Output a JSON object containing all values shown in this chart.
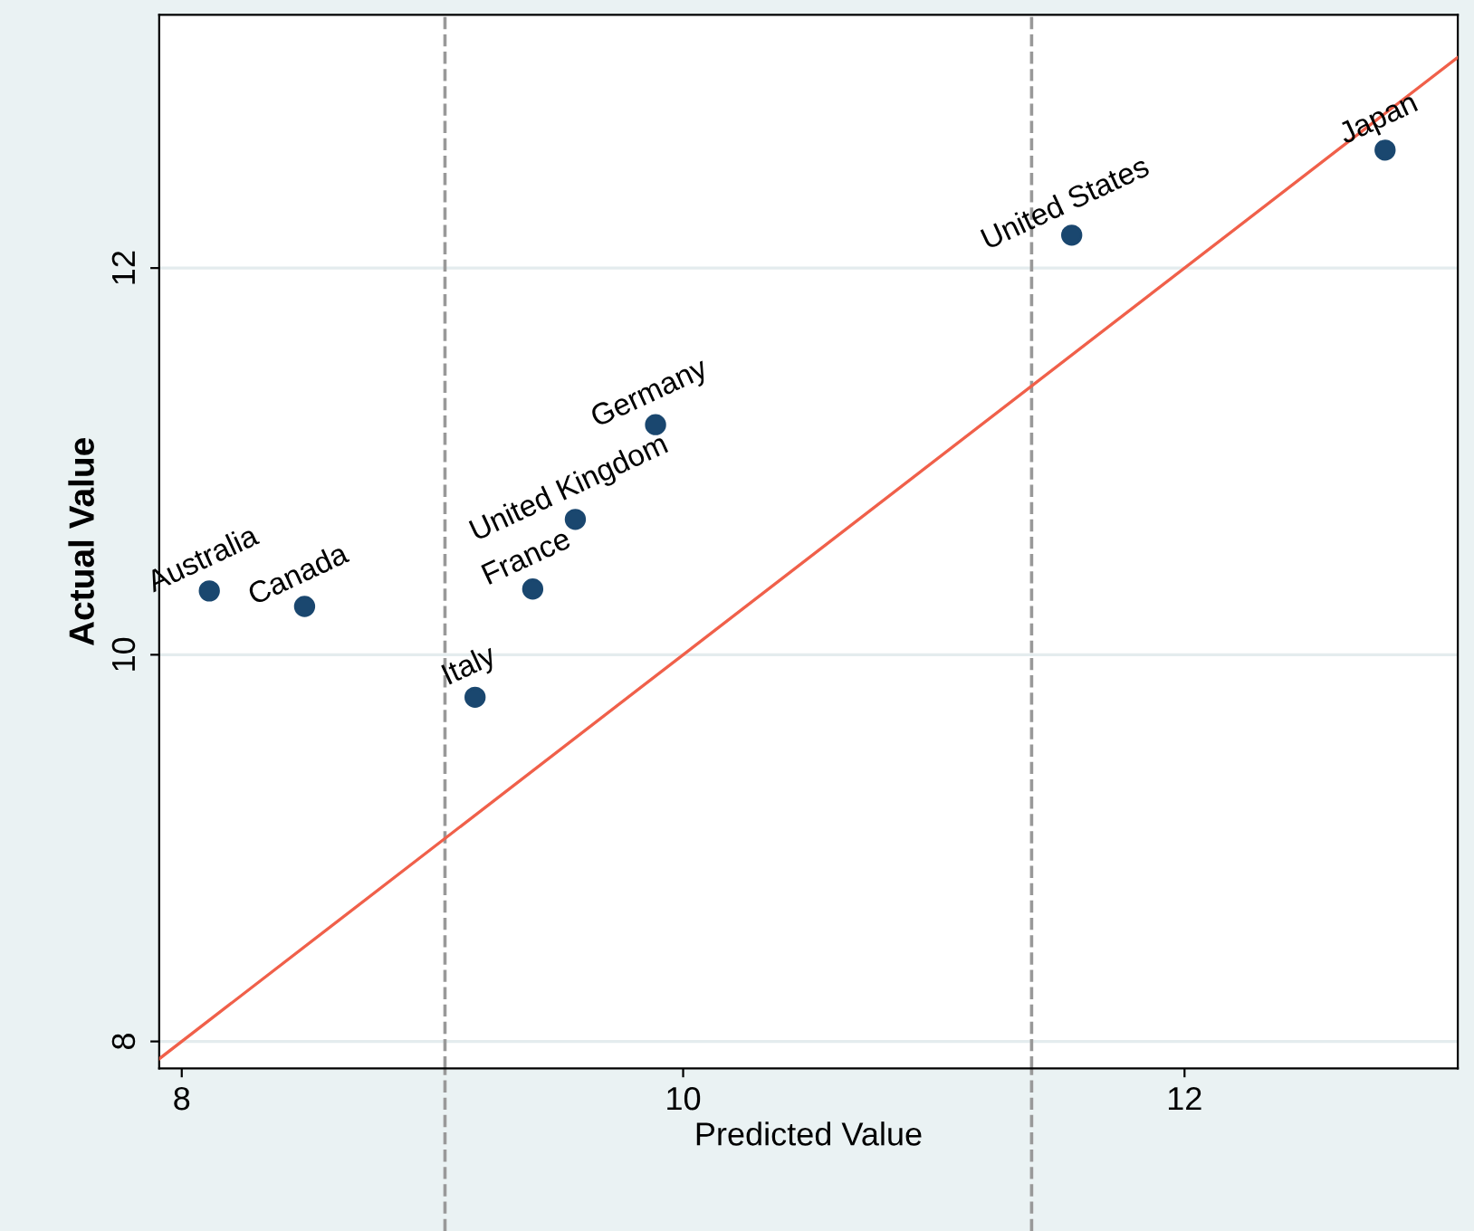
{
  "chart_data": {
    "type": "scatter",
    "xlabel": "Predicted Value",
    "ylabel": "Actual Value",
    "xlim": [
      7.91,
      13.09
    ],
    "ylim": [
      7.86,
      13.31
    ],
    "xticks": [
      8,
      10,
      12
    ],
    "yticks": [
      8,
      10,
      12
    ],
    "grid": "y",
    "legend": false,
    "series": [
      {
        "marker": "circle",
        "color": "#1a476f",
        "x": [
          8.11,
          8.49,
          9.17,
          9.4,
          9.57,
          9.89,
          11.55,
          12.8
        ],
        "values": [
          10.33,
          10.25,
          9.78,
          10.34,
          10.7,
          11.19,
          12.17,
          12.61
        ]
      },
      {
        "type": "line",
        "marker": "none",
        "color": "#f0604a",
        "x": [
          7.91,
          13.09
        ],
        "values": [
          7.91,
          13.09
        ]
      }
    ],
    "ref_lines": [
      {
        "axis": "x",
        "value": 9.05,
        "color": "#999999",
        "line_style": "dashed"
      },
      {
        "axis": "x",
        "value": 11.39,
        "color": "#999999",
        "line_style": "dashed"
      }
    ],
    "annotations": [
      {
        "text": "Australia",
        "x": 8.11,
        "y": 10.33
      },
      {
        "text": "Canada",
        "x": 8.49,
        "y": 10.25
      },
      {
        "text": "Italy",
        "x": 9.17,
        "y": 9.78
      },
      {
        "text": "France",
        "x": 9.4,
        "y": 10.34
      },
      {
        "text": "United Kingdom",
        "x": 9.57,
        "y": 10.7
      },
      {
        "text": "Germany",
        "x": 9.89,
        "y": 11.19
      },
      {
        "text": "United States",
        "x": 11.55,
        "y": 12.17
      },
      {
        "text": "Japan",
        "x": 12.8,
        "y": 12.61
      }
    ]
  }
}
